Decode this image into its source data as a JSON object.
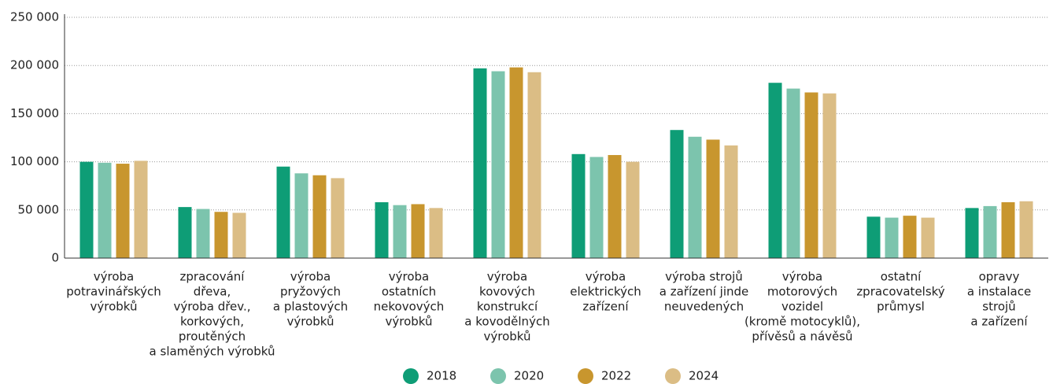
{
  "chart_data": {
    "type": "bar",
    "categories": [
      [
        "výroba",
        "potravinářských",
        "výrobků"
      ],
      [
        "zpracování",
        "dřeva,",
        "výroba dřev.,",
        "korkových,",
        "proutěných",
        "a slaměných výrobků"
      ],
      [
        "výroba",
        "pryžových",
        "a plastových",
        "výrobků"
      ],
      [
        "výroba",
        "ostatních",
        "nekovových",
        "výrobků"
      ],
      [
        "výroba",
        "kovových",
        "konstrukcí",
        "a kovodělných",
        "výrobků"
      ],
      [
        "výroba",
        "elektrických",
        "zařízení"
      ],
      [
        "výroba strojů",
        "a zařízení jinde",
        "neuvedených"
      ],
      [
        "výroba",
        "motorových",
        "vozidel",
        "(kromě motocyklů),",
        "přívěsů a návěsů"
      ],
      [
        "ostatní",
        "zpracovatelský",
        "průmysl"
      ],
      [
        "opravy",
        "a instalace",
        "strojů",
        "a zařízení"
      ]
    ],
    "series": [
      {
        "name": "2018",
        "color": "#0e9d76",
        "values": [
          100000,
          53000,
          95000,
          58000,
          197000,
          108000,
          133000,
          182000,
          43000,
          52000
        ]
      },
      {
        "name": "2020",
        "color": "#7cc4ad",
        "values": [
          99000,
          51000,
          88000,
          55000,
          194000,
          105000,
          126000,
          176000,
          42000,
          54000
        ]
      },
      {
        "name": "2022",
        "color": "#c8962e",
        "values": [
          98000,
          48000,
          86000,
          56000,
          198000,
          107000,
          123000,
          172000,
          44000,
          58000
        ]
      },
      {
        "name": "2024",
        "color": "#dbbd85",
        "values": [
          101000,
          47000,
          83000,
          52000,
          193000,
          100000,
          117000,
          171000,
          42000,
          59000
        ]
      }
    ],
    "ylim": [
      0,
      250000
    ],
    "yticks": [
      0,
      {
        "value": 50000,
        "label": "50 000"
      },
      {
        "value": 100000,
        "label": "100 000"
      },
      {
        "value": 150000,
        "label": "150 000"
      },
      {
        "value": 200000,
        "label": "200 000"
      },
      {
        "value": 250000,
        "label": "250 000"
      }
    ],
    "grid": true,
    "legend": "bottom"
  }
}
